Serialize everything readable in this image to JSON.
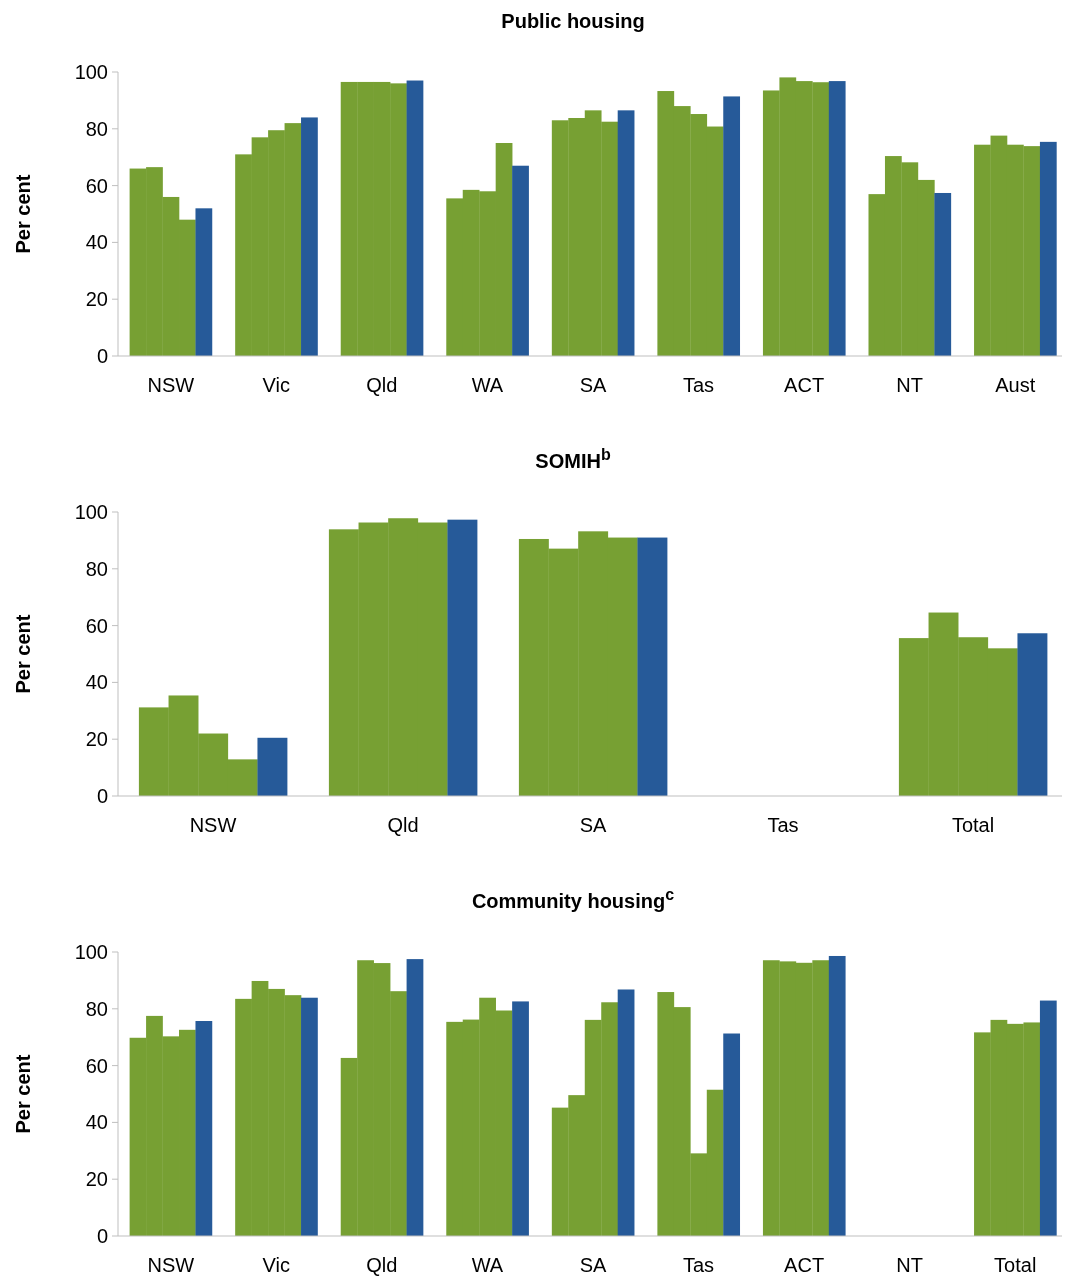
{
  "chart_data": [
    {
      "type": "bar",
      "title": "Public housing",
      "ylabel": "Per cent",
      "categories": [
        "NSW",
        "Vic",
        "Qld",
        "WA",
        "SA",
        "Tas",
        "ACT",
        "NT",
        "Aust"
      ],
      "ylim": [
        0,
        100
      ],
      "yticks": [
        0,
        20,
        40,
        60,
        80,
        100
      ],
      "series": [
        {
          "color": "#77a033",
          "values": [
            66,
            71,
            96.5,
            55.5,
            83,
            93.3,
            93.5,
            57,
            74.4
          ]
        },
        {
          "color": "#77a033",
          "values": [
            66.5,
            77,
            96.5,
            58.5,
            83.8,
            88,
            98.1,
            70.4,
            77.6
          ]
        },
        {
          "color": "#77a033",
          "values": [
            56,
            79.5,
            96.5,
            58,
            86.5,
            85.2,
            96.8,
            68.2,
            74.4
          ]
        },
        {
          "color": "#77a033",
          "values": [
            48,
            82,
            96,
            75,
            82.5,
            80.8,
            96.4,
            62,
            73.9
          ]
        },
        {
          "color": "#265a99",
          "values": [
            52,
            84,
            97,
            67,
            86.5,
            91.4,
            96.8,
            57.4,
            75.4
          ]
        }
      ]
    },
    {
      "type": "bar",
      "title": "SOMIH$^{b}$",
      "ylabel": "Per cent",
      "categories": [
        "NSW",
        "Qld",
        "SA",
        "Tas",
        "Total"
      ],
      "ylim": [
        0,
        100
      ],
      "yticks": [
        0,
        20,
        40,
        60,
        80,
        100
      ],
      "series": [
        {
          "color": "#77a033",
          "values": [
            31.2,
            93.9,
            90.5,
            null,
            55.6
          ]
        },
        {
          "color": "#77a033",
          "values": [
            35.4,
            96.3,
            87.1,
            null,
            64.6
          ]
        },
        {
          "color": "#77a033",
          "values": [
            22,
            97.8,
            93.2,
            null,
            55.9
          ]
        },
        {
          "color": "#77a033",
          "values": [
            12.9,
            96.3,
            91,
            null,
            52
          ]
        },
        {
          "color": "#265a99",
          "values": [
            20.5,
            97.3,
            91,
            null,
            57.3
          ]
        }
      ]
    },
    {
      "type": "bar",
      "title": "Community housing$^{c}$",
      "ylabel": "Per cent",
      "categories": [
        "NSW",
        "Vic",
        "Qld",
        "WA",
        "SA",
        "Tas",
        "ACT",
        "NT",
        "Total"
      ],
      "ylim": [
        0,
        100
      ],
      "yticks": [
        0,
        20,
        40,
        60,
        80,
        100
      ],
      "series": [
        {
          "color": "#77a033",
          "values": [
            69.8,
            83.5,
            62.7,
            75.4,
            45.2,
            85.9,
            97.1,
            null,
            71.7
          ]
        },
        {
          "color": "#77a033",
          "values": [
            77.5,
            89.8,
            97.1,
            76.2,
            49.6,
            80.6,
            96.7,
            null,
            76.1
          ]
        },
        {
          "color": "#77a033",
          "values": [
            70.3,
            87,
            96.1,
            83.9,
            76.1,
            29.1,
            96.2,
            null,
            74.7
          ]
        },
        {
          "color": "#77a033",
          "values": [
            72.6,
            84.8,
            86.2,
            79.4,
            82.3,
            51.5,
            97.1,
            null,
            75.2
          ]
        },
        {
          "color": "#265a99",
          "values": [
            75.7,
            83.9,
            97.5,
            82.6,
            86.8,
            71.3,
            98.6,
            null,
            82.9
          ]
        }
      ]
    }
  ]
}
